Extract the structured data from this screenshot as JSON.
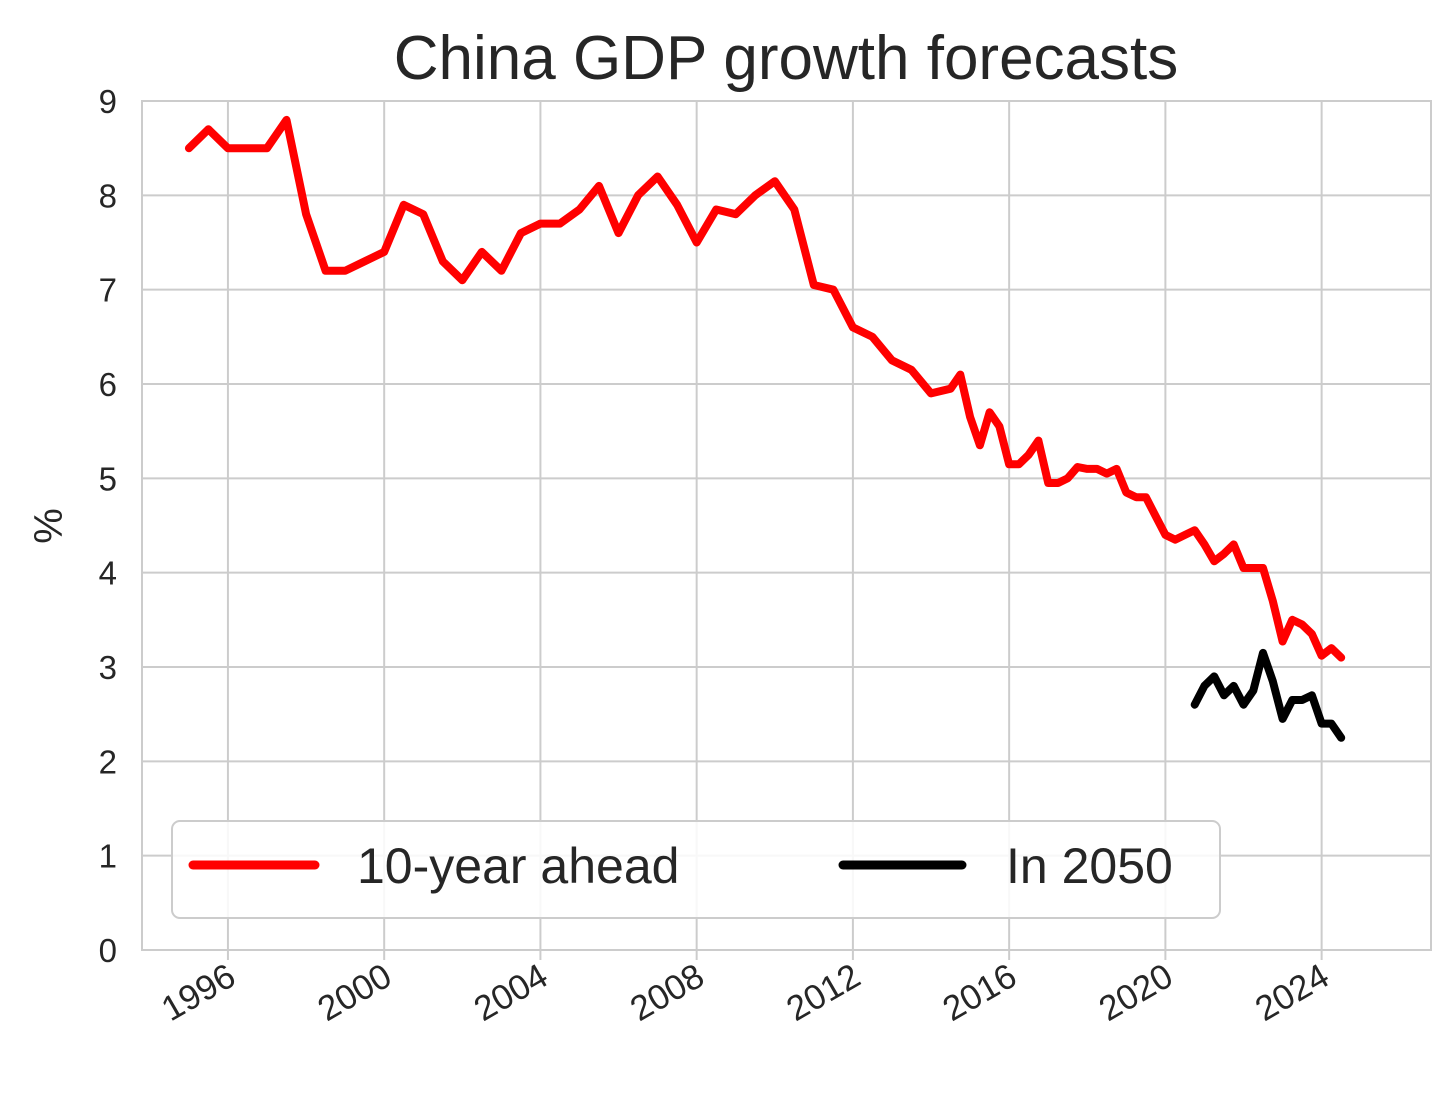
{
  "chart_data": {
    "type": "line",
    "title": "China GDP growth forecasts",
    "xlabel": "",
    "ylabel": "%",
    "xlim": [
      1993.8,
      2026.8
    ],
    "ylim": [
      0,
      9
    ],
    "x_ticks": [
      "1996",
      "2000",
      "2004",
      "2008",
      "2012",
      "2016",
      "2020",
      "2024"
    ],
    "y_ticks": [
      "0",
      "1",
      "2",
      "3",
      "4",
      "5",
      "6",
      "7",
      "8",
      "9"
    ],
    "grid": true,
    "legend_position": "lower-left",
    "series": [
      {
        "name": "10-year ahead",
        "color": "#ff0000",
        "x": [
          1995.0,
          1995.5,
          1996.0,
          1996.5,
          1997.0,
          1997.5,
          1998.0,
          1998.5,
          1999.0,
          1999.5,
          2000.0,
          2000.5,
          2001.0,
          2001.5,
          2002.0,
          2002.5,
          2003.0,
          2003.5,
          2004.0,
          2004.5,
          2005.0,
          2005.5,
          2006.0,
          2006.5,
          2007.0,
          2007.5,
          2008.0,
          2008.5,
          2009.0,
          2009.5,
          2010.0,
          2010.5,
          2011.0,
          2011.5,
          2012.0,
          2012.5,
          2013.0,
          2013.5,
          2014.0,
          2014.5,
          2014.75,
          2015.0,
          2015.25,
          2015.5,
          2015.75,
          2016.0,
          2016.25,
          2016.5,
          2016.75,
          2017.0,
          2017.25,
          2017.5,
          2017.75,
          2018.0,
          2018.25,
          2018.5,
          2018.75,
          2019.0,
          2019.25,
          2019.5,
          2019.75,
          2020.0,
          2020.25,
          2020.5,
          2020.75,
          2021.0,
          2021.25,
          2021.5,
          2021.75,
          2022.0,
          2022.25,
          2022.5,
          2022.75,
          2023.0,
          2023.25,
          2023.5,
          2023.75,
          2024.0,
          2024.25,
          2024.5
        ],
        "values": [
          8.5,
          8.7,
          8.5,
          8.5,
          8.5,
          8.8,
          7.8,
          7.2,
          7.2,
          7.3,
          7.4,
          7.9,
          7.8,
          7.3,
          7.1,
          7.4,
          7.2,
          7.6,
          7.7,
          7.7,
          7.85,
          8.1,
          7.6,
          8.0,
          8.2,
          7.9,
          7.5,
          7.85,
          7.8,
          8.0,
          8.15,
          7.85,
          7.05,
          7.0,
          6.6,
          6.5,
          6.25,
          6.15,
          5.9,
          5.95,
          6.1,
          5.65,
          5.35,
          5.7,
          5.55,
          5.15,
          5.15,
          5.25,
          5.4,
          4.95,
          4.95,
          5.0,
          5.12,
          5.1,
          5.1,
          5.05,
          5.1,
          4.85,
          4.8,
          4.8,
          4.6,
          4.4,
          4.35,
          4.4,
          4.45,
          4.3,
          4.12,
          4.2,
          4.3,
          4.05,
          4.05,
          4.05,
          3.7,
          3.27,
          3.5,
          3.45,
          3.35,
          3.12,
          3.2,
          3.1
        ]
      },
      {
        "name": "In 2050",
        "color": "#000000",
        "x": [
          2020.75,
          2021.0,
          2021.25,
          2021.5,
          2021.75,
          2022.0,
          2022.25,
          2022.5,
          2022.75,
          2023.0,
          2023.25,
          2023.5,
          2023.75,
          2024.0,
          2024.25,
          2024.5
        ],
        "values": [
          2.6,
          2.8,
          2.9,
          2.7,
          2.8,
          2.6,
          2.75,
          3.15,
          2.85,
          2.45,
          2.65,
          2.65,
          2.7,
          2.4,
          2.4,
          2.25
        ]
      }
    ]
  }
}
